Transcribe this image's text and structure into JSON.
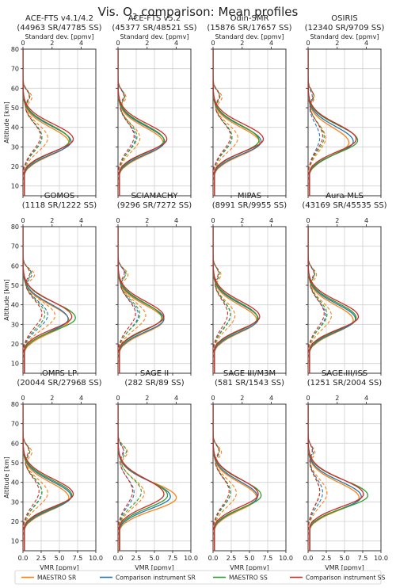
{
  "figure": {
    "title": "Vis. O",
    "title_sub": "3",
    "title_rest": " comparison: Mean profiles",
    "ylabel": "Altitude [km]",
    "xlabel_bottom": "VMR [ppmv]",
    "xlabel_top": "Standard dev. [ppmv]"
  },
  "chart_data": {
    "type": "line",
    "grid": true,
    "legend_placement": "bottom",
    "ylim": [
      5,
      80
    ],
    "yticks": [
      10,
      20,
      30,
      40,
      50,
      60,
      70,
      80
    ],
    "xlim_vmr": [
      0,
      10
    ],
    "xticks_vmr": [
      "0.0",
      "2.5",
      "5.0",
      "7.5",
      "10.0"
    ],
    "xlim_std": [
      0,
      5
    ],
    "xticks_std": [
      "0",
      "2",
      "4"
    ],
    "legend": [
      {
        "name": "MAESTRO SR",
        "color": "#ff7f0e"
      },
      {
        "name": "Comparison instrument SR",
        "color": "#1f77b4"
      },
      {
        "name": "MAESTRO SS",
        "color": "#2ca02c"
      },
      {
        "name": "Comparison instrument SS",
        "color": "#d62728"
      }
    ],
    "panels": [
      {
        "name": "ACE-FTS v4.1/4.2",
        "counts": "(44963 SR/47785 SS)",
        "peak": {
          "ms": 6.3,
          "cs": 6.6,
          "ma": 6.4,
          "ca": 6.9
        },
        "std": {
          "ms": 1.7,
          "cs": 1.3,
          "ma": 1.3,
          "ca": 1.2
        }
      },
      {
        "name": "ACE-FTS v5.2",
        "counts": "(45377 SR/48521 SS)",
        "peak": {
          "ms": 6.2,
          "cs": 6.4,
          "ma": 6.3,
          "ca": 6.7
        },
        "std": {
          "ms": 1.5,
          "cs": 1.2,
          "ma": 1.3,
          "ca": 1.1
        }
      },
      {
        "name": "Odin-SMR",
        "counts": "(15876 SR/17657 SS)",
        "peak": {
          "ms": 6.4,
          "cs": 6.6,
          "ma": 6.3,
          "ca": 6.9
        },
        "std": {
          "ms": 1.7,
          "cs": 1.3,
          "ma": 1.3,
          "ca": 1.2
        }
      },
      {
        "name": "OSIRIS",
        "counts": "(12340 SR/9709 SS)",
        "peak": {
          "ms": 5.6,
          "cs": 6.2,
          "ma": 6.8,
          "ca": 6.6
        },
        "std": {
          "ms": 1.2,
          "cs": 0.8,
          "ma": 1.1,
          "ca": 1.0
        }
      },
      {
        "name": "GOMOS",
        "counts": "(1118 SR/1222 SS)",
        "peak": {
          "ms": 6.3,
          "cs": 6.2,
          "ma": 7.2,
          "ca": 6.7
        },
        "std": {
          "ms": 2.2,
          "cs": 1.7,
          "ma": 1.5,
          "ca": 1.3
        }
      },
      {
        "name": "SCIAMACHY",
        "counts": "(9296 SR/7272 SS)",
        "peak": {
          "ms": 6.2,
          "cs": 6.3,
          "ma": 6.0,
          "ca": 6.3
        },
        "std": {
          "ms": 1.9,
          "cs": 1.4,
          "ma": 1.5,
          "ca": 1.2
        }
      },
      {
        "name": "MIPAS",
        "counts": "(8991 SR/9955 SS)",
        "peak": {
          "ms": 6.0,
          "cs": 6.2,
          "ma": 6.1,
          "ca": 6.4
        },
        "std": {
          "ms": 1.5,
          "cs": 1.2,
          "ma": 1.2,
          "ca": 1.0
        }
      },
      {
        "name": "Aura-MLS",
        "counts": "(43169 SR/45535 SS)",
        "peak": {
          "ms": 6.2,
          "cs": 6.5,
          "ma": 6.6,
          "ca": 6.9
        },
        "std": {
          "ms": 1.6,
          "cs": 1.2,
          "ma": 1.3,
          "ca": 1.1
        }
      },
      {
        "name": "OMPS-LP",
        "counts": "(20044 SR/27968 SS)",
        "peak": {
          "ms": 6.3,
          "cs": 6.6,
          "ma": 6.7,
          "ca": 6.9
        },
        "std": {
          "ms": 1.7,
          "cs": 1.3,
          "ma": 1.3,
          "ca": 1.1
        }
      },
      {
        "name": "SAGE II",
        "counts": "(282 SR/89 SS)",
        "peak": {
          "ms": 8.0,
          "cs": 7.2,
          "ma": 6.8,
          "ca": 6.3
        },
        "std": {
          "ms": 1.8,
          "cs": 1.1,
          "ma": 1.6,
          "ca": 1.0
        }
      },
      {
        "name": "SAGE III/M3M",
        "counts": "(581 SR/1543 SS)",
        "peak": {
          "ms": 6.0,
          "cs": 6.1,
          "ma": 6.6,
          "ca": 6.2
        },
        "std": {
          "ms": 1.6,
          "cs": 1.2,
          "ma": 1.2,
          "ca": 1.1
        }
      },
      {
        "name": "SAGE III/ISS",
        "counts": "(1251 SR/2004 SS)",
        "peak": {
          "ms": 7.0,
          "cs": 7.3,
          "ma": 8.2,
          "ca": 7.6
        },
        "std": {
          "ms": 1.3,
          "cs": 1.0,
          "ma": 0.8,
          "ca": 0.8
        }
      }
    ]
  }
}
